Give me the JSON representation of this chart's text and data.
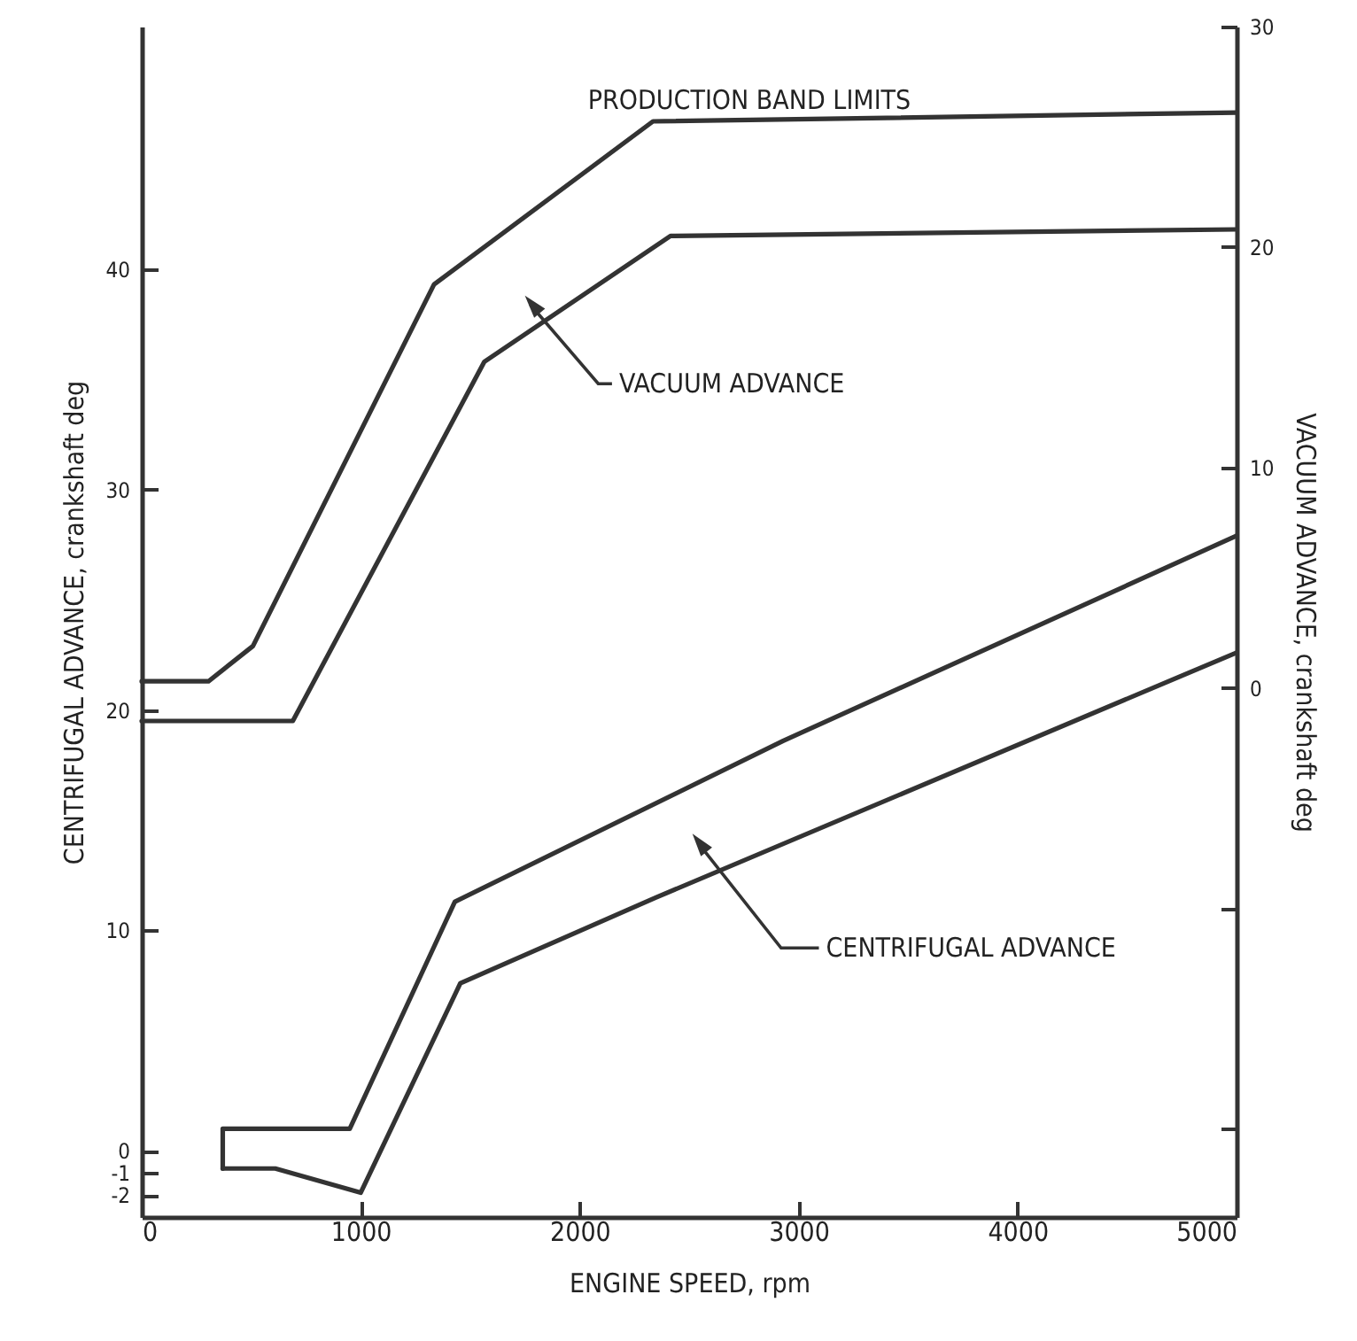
{
  "chart_data": {
    "type": "line",
    "xlabel": "ENGINE SPEED, rpm",
    "ylabel": "CENTRIFUGAL ADVANCE, crankshaft deg",
    "y2label": "VACUUM ADVANCE, crankshaft deg",
    "annotations": [
      "PRODUCTION BAND LIMITS",
      "VACUUM ADVANCE",
      "CENTRIFUGAL ADVANCE"
    ],
    "xlim": [
      0,
      5000
    ],
    "xticks": [
      0,
      1000,
      2000,
      3000,
      4000,
      5000
    ],
    "ylim": [
      -3,
      51
    ],
    "yticks": [
      -2,
      -1,
      0,
      10,
      20,
      30,
      40
    ],
    "y2lim": [
      -24,
      30
    ],
    "y2ticks": [
      {
        "value": -20,
        "label": null
      },
      {
        "value": -10,
        "label": null
      },
      0,
      10,
      20,
      30
    ],
    "grid": false,
    "marker": "none",
    "line_style": "solid",
    "series": [
      {
        "color": "#333333",
        "x": [
          370,
          370,
          950,
          1430,
          2930,
          5000
        ],
        "values": [
          -0.8,
          1.0,
          1.0,
          11.3,
          18.6,
          27.9
        ]
      },
      {
        "color": "#333333",
        "x": [
          370,
          610,
          1000,
          1455,
          2350,
          5000
        ],
        "values": [
          -0.8,
          -0.8,
          -1.9,
          7.6,
          11.5,
          22.6
        ]
      },
      {
        "color": "#333333",
        "axis": "y2",
        "x": [
          0,
          305,
          508,
          1335,
          2335,
          5000
        ],
        "values": [
          0.3,
          0.3,
          1.9,
          18.3,
          25.7,
          26.1
        ]
      },
      {
        "color": "#333333",
        "axis": "y2",
        "x": [
          0,
          690,
          1565,
          2415,
          5000
        ],
        "values": [
          -1.5,
          -1.5,
          14.8,
          20.5,
          20.8
        ]
      }
    ]
  }
}
